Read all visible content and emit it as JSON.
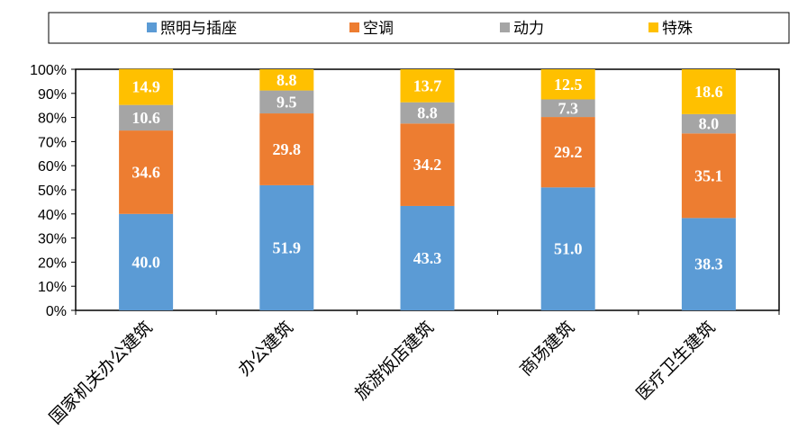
{
  "chart_data": {
    "type": "bar",
    "stacked": true,
    "categories": [
      "国家机关办公建筑",
      "办公建筑",
      "旅游饭店建筑",
      "商场建筑",
      "医疗卫生建筑"
    ],
    "series": [
      {
        "name": "照明与插座",
        "color": "#5B9BD5",
        "values": [
          40.0,
          51.9,
          43.3,
          51.0,
          38.3
        ]
      },
      {
        "name": "空调",
        "color": "#ED7D31",
        "values": [
          34.6,
          29.8,
          34.2,
          29.2,
          35.1
        ]
      },
      {
        "name": "动力",
        "color": "#A5A5A5",
        "values": [
          10.6,
          9.5,
          8.8,
          7.3,
          8.0
        ]
      },
      {
        "name": "特殊",
        "color": "#FFC000",
        "values": [
          14.9,
          8.8,
          13.7,
          12.5,
          18.6
        ]
      }
    ],
    "data_labels": [
      [
        "40.0",
        "51.9",
        "43.3",
        "51.0",
        "38.3"
      ],
      [
        "34.6",
        "29.8",
        "34.2",
        "29.2",
        "35.1"
      ],
      [
        "10.6",
        "9.5",
        "8.8",
        "7.3",
        "8.0"
      ],
      [
        "14.9",
        "8.8",
        "13.7",
        "12.5",
        "18.6"
      ]
    ],
    "yticks": [
      "0%",
      "10%",
      "20%",
      "30%",
      "40%",
      "50%",
      "60%",
      "70%",
      "80%",
      "90%",
      "100%"
    ],
    "ylim": [
      0,
      100
    ],
    "legend_position": "top",
    "title": "",
    "xlabel": "",
    "ylabel": ""
  }
}
